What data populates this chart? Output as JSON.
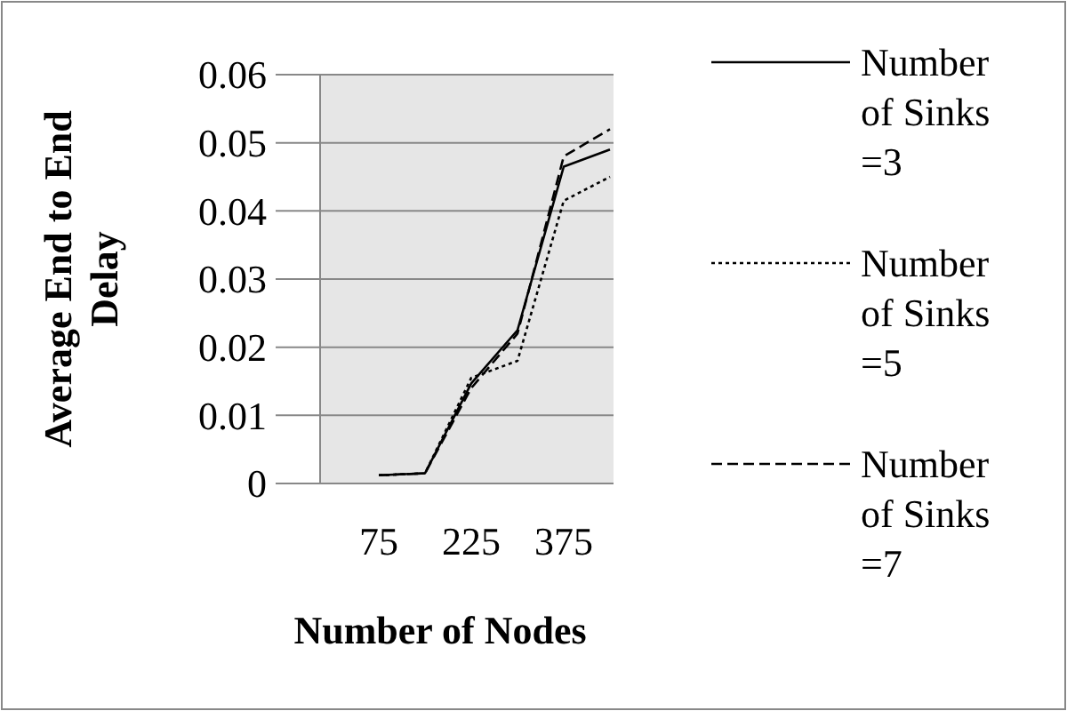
{
  "chart_data": {
    "type": "line",
    "xlabel": "Number of Nodes",
    "ylabel": "Average End to End Delay",
    "categories": [
      "75",
      null,
      "225",
      null,
      "375",
      null
    ],
    "ylim": [
      0,
      0.06
    ],
    "yticks": [
      0,
      0.01,
      0.02,
      0.03,
      0.04,
      0.05,
      0.06
    ],
    "grid": "y",
    "legend": "right",
    "series": [
      {
        "name": "Number of Sinks =3",
        "color": "#000000",
        "line_style": "solid",
        "values": [
          0.0012,
          0.0015,
          0.0147,
          0.0225,
          0.0465,
          0.049
        ]
      },
      {
        "name": "Number of Sinks =5",
        "color": "#000000",
        "line_style": "dotted",
        "values": [
          0.0012,
          0.0015,
          0.0155,
          0.018,
          0.0415,
          0.045
        ]
      },
      {
        "name": "Number of Sinks =7",
        "color": "#000000",
        "line_style": "dashed",
        "values": [
          0.0012,
          0.0015,
          0.014,
          0.022,
          0.048,
          0.052
        ]
      }
    ]
  }
}
